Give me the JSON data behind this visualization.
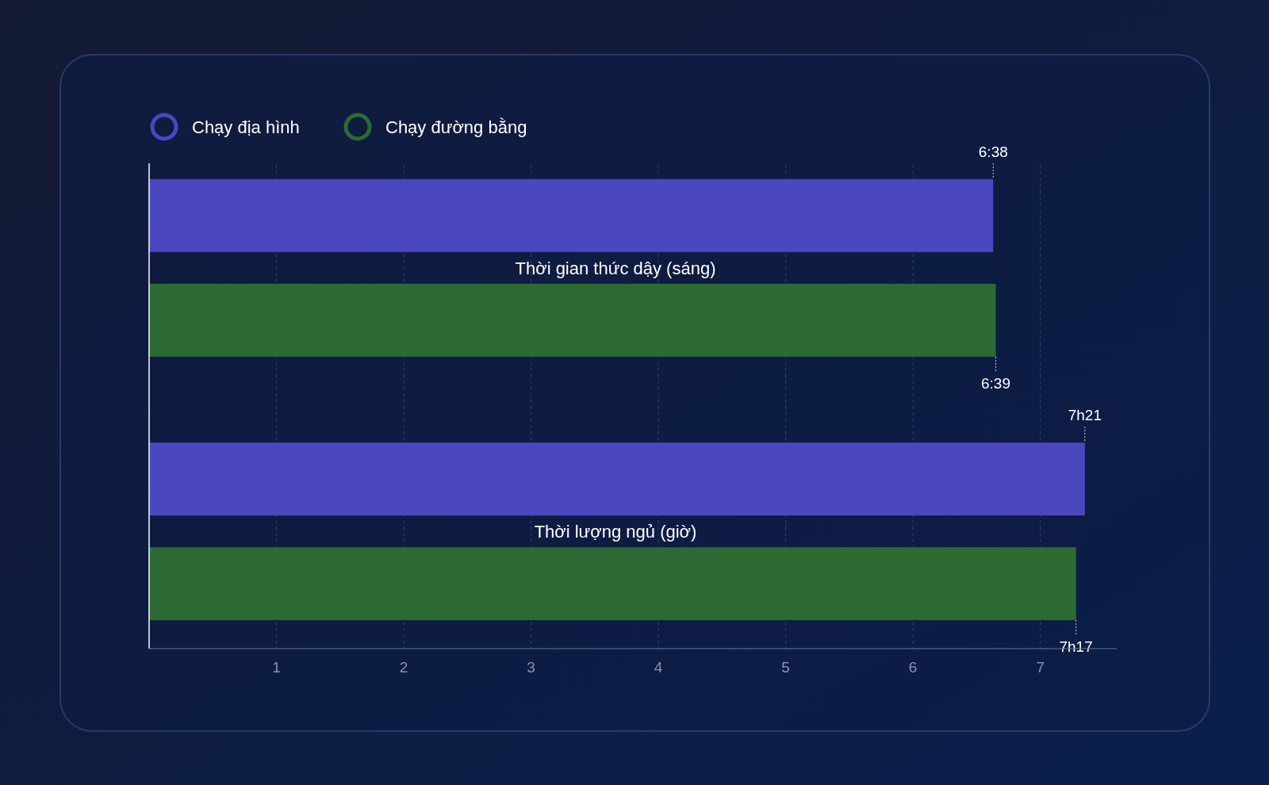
{
  "chart_data": {
    "type": "bar",
    "orientation": "horizontal",
    "categories": [
      "Thời gian thức dậy (sáng)",
      "Thời lượng ngủ (giờ)"
    ],
    "series": [
      {
        "name": "Chạy địa hình",
        "color": "#4a47bf",
        "values": [
          6.63,
          7.35
        ],
        "value_labels": [
          "6:38",
          "7h21"
        ]
      },
      {
        "name": "Chạy đường bằng",
        "color": "#2c6a34",
        "values": [
          6.65,
          7.28
        ],
        "value_labels": [
          "6:39",
          "7h17"
        ]
      }
    ],
    "xlim": [
      0,
      7.6
    ],
    "xticks": [
      1,
      2,
      3,
      4,
      5,
      6,
      7
    ],
    "grid": "x",
    "legend": "top left"
  }
}
